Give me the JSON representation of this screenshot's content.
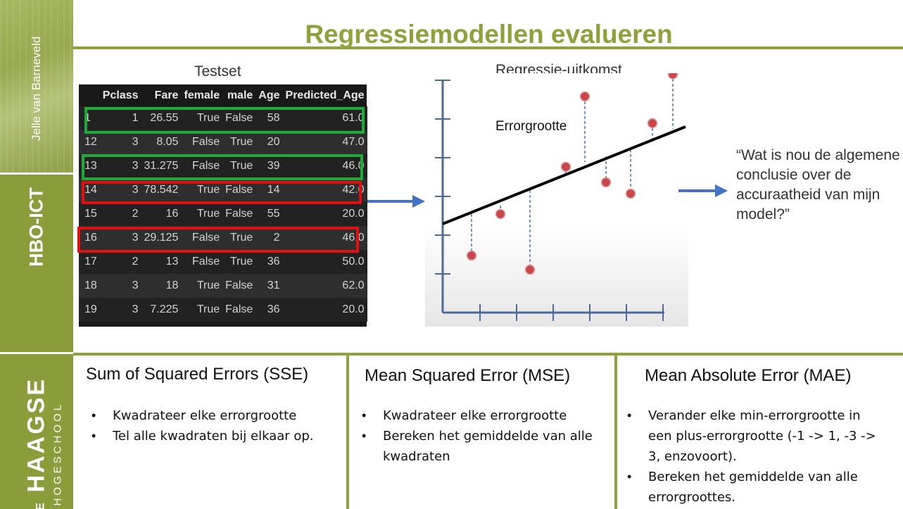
{
  "sidebar": {
    "author": "Jelle van Barneveld",
    "department": "HBO-ICT",
    "logo_prefix": "DE",
    "logo_main": "HAAGSE",
    "logo_sub": "HOGESCHOOL",
    "color": "#8a9d3a"
  },
  "title": "Regressiemodellen evalueren",
  "accent_color": "#8ea23c",
  "testset": {
    "label": "Testset",
    "columns": [
      "",
      "Pclass",
      "Fare",
      "female",
      "male",
      "Age",
      "Predicted_Age"
    ],
    "rows": [
      [
        "1",
        "1",
        "26.55",
        "True",
        "False",
        "58",
        "61.0"
      ],
      [
        "12",
        "3",
        "8.05",
        "False",
        "True",
        "20",
        "47.0"
      ],
      [
        "13",
        "3",
        "31.275",
        "False",
        "True",
        "39",
        "46.0"
      ],
      [
        "14",
        "3",
        "78.542",
        "True",
        "False",
        "14",
        "42.0"
      ],
      [
        "15",
        "2",
        "16",
        "True",
        "False",
        "55",
        "20.0"
      ],
      [
        "16",
        "3",
        "29.125",
        "False",
        "True",
        "2",
        "46.0"
      ],
      [
        "17",
        "2",
        "13",
        "False",
        "True",
        "36",
        "50.0"
      ],
      [
        "18",
        "3",
        "18",
        "True",
        "False",
        "31",
        "62.0"
      ],
      [
        "19",
        "3",
        "7.225",
        "True",
        "False",
        "36",
        "20.0"
      ]
    ],
    "highlight_green_rows": [
      0,
      2
    ],
    "highlight_red_rows": [
      3,
      5
    ]
  },
  "regression": {
    "label": "Regressie-uitkomst",
    "error_label": "Errorgrootte",
    "point_color": "#c9474a",
    "line_color": "#000000",
    "residual_color": "#4472c4"
  },
  "question": "“Wat is nou de algemene conclusie over de accuraatheid van mijn model?”",
  "panels": [
    {
      "heading": "Sum of Squared Errors (SSE)",
      "bullets": [
        "Kwadrateer elke errorgrootte",
        "Tel alle kwadraten bij elkaar op."
      ]
    },
    {
      "heading": "Mean Squared Error (MSE)",
      "bullets": [
        "Kwadrateer elke errorgrootte",
        "Bereken het gemiddelde van alle kwadraten"
      ]
    },
    {
      "heading": "Mean Absolute Error (MAE)",
      "bullets": [
        "Verander elke min-errorgrootte in een plus-errorgrootte (-1 -> 1, -3 -> 3, enzovoort).",
        "Bereken het gemiddelde van alle errorgroottes."
      ]
    }
  ]
}
